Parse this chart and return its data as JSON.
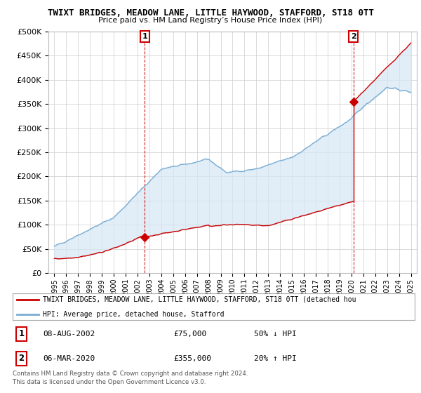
{
  "title": "TWIXT BRIDGES, MEADOW LANE, LITTLE HAYWOOD, STAFFORD, ST18 0TT",
  "subtitle": "Price paid vs. HM Land Registry’s House Price Index (HPI)",
  "legend_line1": "TWIXT BRIDGES, MEADOW LANE, LITTLE HAYWOOD, STAFFORD, ST18 0TT (detached hou",
  "legend_line2": "HPI: Average price, detached house, Stafford",
  "annotation1_label": "1",
  "annotation1_date": "08-AUG-2002",
  "annotation1_price": "£75,000",
  "annotation1_hpi": "50% ↓ HPI",
  "annotation2_label": "2",
  "annotation2_date": "06-MAR-2020",
  "annotation2_price": "£355,000",
  "annotation2_hpi": "20% ↑ HPI",
  "footer1": "Contains HM Land Registry data © Crown copyright and database right 2024.",
  "footer2": "This data is licensed under the Open Government Licence v3.0.",
  "red_color": "#cc0000",
  "blue_color": "#7aadd4",
  "fill_color": "#d6e8f5",
  "background_color": "#ffffff",
  "grid_color": "#cccccc",
  "ylim": [
    0,
    500000
  ],
  "yticks": [
    0,
    50000,
    100000,
    150000,
    200000,
    250000,
    300000,
    350000,
    400000,
    450000,
    500000
  ],
  "sale1_year": 2002.6,
  "sale1_price": 75000,
  "sale2_year": 2020.17,
  "sale2_price": 355000
}
